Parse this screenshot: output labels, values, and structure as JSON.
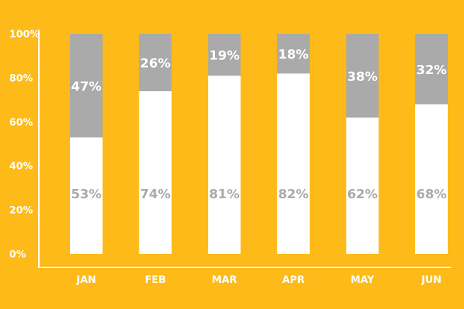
{
  "chart_data": {
    "type": "bar",
    "stacked": true,
    "categories": [
      "JAN",
      "FEB",
      "MAR",
      "APR",
      "MAY",
      "JUN"
    ],
    "series": [
      {
        "values": [
          53,
          74,
          81,
          82,
          62,
          68
        ],
        "color": "#FFFFFF",
        "label_color": "#AAAAAA"
      },
      {
        "values": [
          47,
          26,
          19,
          18,
          38,
          32
        ],
        "color": "#AAAAAA",
        "label_color": "#FFFFFF"
      }
    ],
    "data_labels": {
      "series_0": [
        "53%",
        "74%",
        "81%",
        "82%",
        "62%",
        "68%"
      ],
      "series_1": [
        "47%",
        "26%",
        "19%",
        "18%",
        "38%",
        "32%"
      ]
    },
    "y_ticks": [
      0,
      20,
      40,
      60,
      80,
      100
    ],
    "y_tick_labels": [
      "0%",
      "20%",
      "40%",
      "60%",
      "80%",
      "100%"
    ],
    "ylim": [
      0,
      100
    ],
    "grid": false,
    "legend": "none",
    "background_color": "#FDBA18",
    "axis_color": "#FFFFFF"
  }
}
